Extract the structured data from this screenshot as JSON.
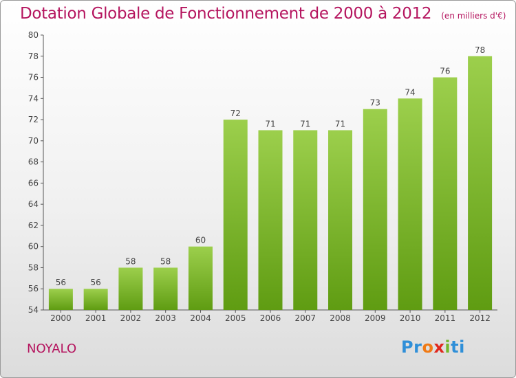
{
  "title": "Dotation Globale de Fonctionnement de 2000 à 2012",
  "unit_note": "(en milliers d'€)",
  "commune": "NOYALO",
  "logo": {
    "text": "Proxiti",
    "parts": [
      "Pr",
      "o",
      "",
      "x",
      "i",
      "ti"
    ]
  },
  "colors": {
    "title": "#b5155f",
    "bar_top": "#9ccf4c",
    "bar_bottom": "#5f9c12"
  },
  "chart_data": {
    "type": "bar",
    "categories": [
      "2000",
      "2001",
      "2002",
      "2003",
      "2004",
      "2005",
      "2006",
      "2007",
      "2008",
      "2009",
      "2010",
      "2011",
      "2012"
    ],
    "values": [
      56,
      56,
      58,
      58,
      60,
      72,
      71,
      71,
      71,
      73,
      74,
      76,
      78
    ],
    "ylim": [
      54,
      80
    ],
    "yticks": [
      54,
      56,
      58,
      60,
      62,
      64,
      66,
      68,
      70,
      72,
      74,
      76,
      78,
      80
    ],
    "grid": false,
    "legend": "none",
    "data_labels": true
  }
}
